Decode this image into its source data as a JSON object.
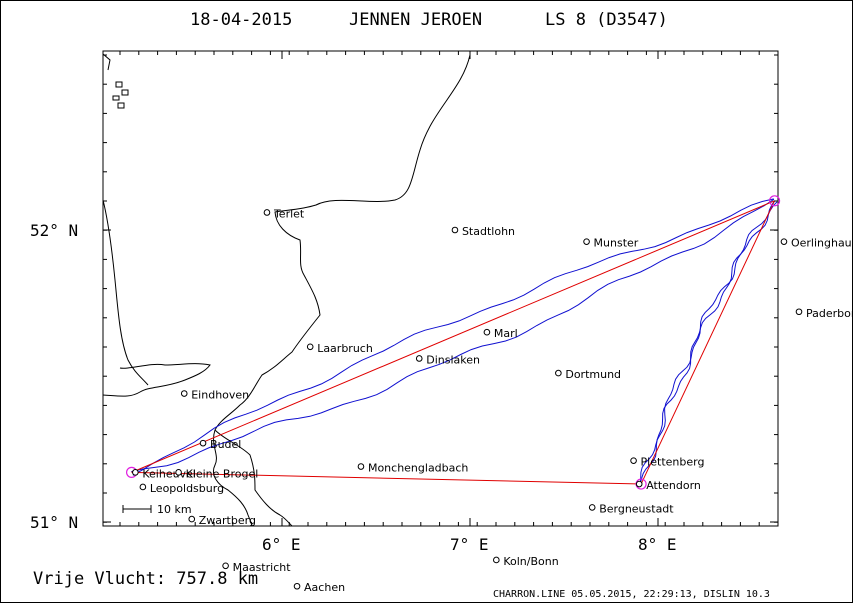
{
  "header": {
    "date": "18-04-2015",
    "pilot": "JENNEN JEROEN",
    "class": "LS 8 (D3547)"
  },
  "footer": {
    "distance_text": "Vrije Vlucht:  757.8 km",
    "software_text": "CHARRON.LINE 05.05.2015, 22:29:13, DISLIN 10.3"
  },
  "scale_bar": {
    "label": "10 km",
    "km": 10
  },
  "axes": {
    "lat_ticks": [
      {
        "value": 52.0,
        "label": "52° N"
      },
      {
        "value": 51.0,
        "label": "51° N"
      }
    ],
    "lon_ticks": [
      {
        "value": 6.0,
        "label": "6° E"
      },
      {
        "value": 7.0,
        "label": "7° E"
      },
      {
        "value": 8.0,
        "label": "8° E"
      }
    ],
    "lon_range": [
      5.0,
      8.7
    ],
    "lat_range": [
      51.0,
      52.6
    ]
  },
  "colors": {
    "track": "#1010d0",
    "route": "#e00000",
    "turnpoint": "#e020e0",
    "border": "#000000"
  },
  "places": [
    {
      "name": "Terlet",
      "lon": 5.92,
      "lat": 52.06
    },
    {
      "name": "Stadtlohn",
      "lon": 6.92,
      "lat": 52.0
    },
    {
      "name": "Munster",
      "lon": 7.62,
      "lat": 51.96
    },
    {
      "name": "Oerlinghausen",
      "lon": 8.67,
      "lat": 51.96
    },
    {
      "name": "Paderborn",
      "lon": 8.75,
      "lat": 51.72
    },
    {
      "name": "Laarbruch",
      "lon": 6.15,
      "lat": 51.6
    },
    {
      "name": "Dinslaken",
      "lon": 6.73,
      "lat": 51.56
    },
    {
      "name": "Marl",
      "lon": 7.09,
      "lat": 51.65
    },
    {
      "name": "Dortmund",
      "lon": 7.47,
      "lat": 51.51
    },
    {
      "name": "Eindhoven",
      "lon": 5.48,
      "lat": 51.44
    },
    {
      "name": "Budel",
      "lon": 5.58,
      "lat": 51.27
    },
    {
      "name": "Keiheuvel",
      "lon": 5.22,
      "lat": 51.17
    },
    {
      "name": "Kleine Brogel",
      "lon": 5.45,
      "lat": 51.17
    },
    {
      "name": "Leopoldsburg",
      "lon": 5.26,
      "lat": 51.12
    },
    {
      "name": "Monchengladbach",
      "lon": 6.42,
      "lat": 51.19
    },
    {
      "name": "Plettenberg",
      "lon": 7.87,
      "lat": 51.21
    },
    {
      "name": "Attendorn",
      "lon": 7.9,
      "lat": 51.13
    },
    {
      "name": "Bergneustadt",
      "lon": 7.65,
      "lat": 51.05
    },
    {
      "name": "Zwartberg",
      "lon": 5.52,
      "lat": 51.01
    },
    {
      "name": "Maastricht",
      "lon": 5.7,
      "lat": 50.85
    },
    {
      "name": "Aachen",
      "lon": 6.08,
      "lat": 50.78
    },
    {
      "name": "Koln/Bonn",
      "lon": 7.14,
      "lat": 50.87
    }
  ],
  "route_points": [
    {
      "lon": 5.2,
      "lat": 51.17
    },
    {
      "lon": 8.62,
      "lat": 52.1
    },
    {
      "lon": 7.91,
      "lat": 51.13
    },
    {
      "lon": 5.2,
      "lat": 51.17
    }
  ]
}
